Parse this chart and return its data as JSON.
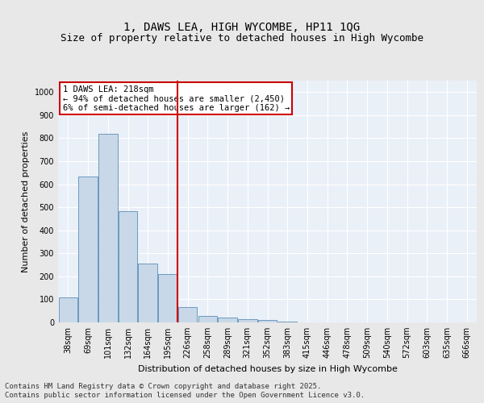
{
  "title_line1": "1, DAWS LEA, HIGH WYCOMBE, HP11 1QG",
  "title_line2": "Size of property relative to detached houses in High Wycombe",
  "xlabel": "Distribution of detached houses by size in High Wycombe",
  "ylabel": "Number of detached properties",
  "categories": [
    "38sqm",
    "69sqm",
    "101sqm",
    "132sqm",
    "164sqm",
    "195sqm",
    "226sqm",
    "258sqm",
    "289sqm",
    "321sqm",
    "352sqm",
    "383sqm",
    "415sqm",
    "446sqm",
    "478sqm",
    "509sqm",
    "540sqm",
    "572sqm",
    "603sqm",
    "635sqm",
    "666sqm"
  ],
  "values": [
    110,
    635,
    820,
    483,
    255,
    210,
    65,
    27,
    20,
    13,
    9,
    5,
    0,
    0,
    0,
    0,
    0,
    0,
    0,
    0,
    0
  ],
  "bar_color": "#c8d8e8",
  "bar_edge_color": "#5b8db8",
  "vline_x": 5.5,
  "vline_color": "#cc0000",
  "annotation_line1": "1 DAWS LEA: 218sqm",
  "annotation_line2": "← 94% of detached houses are smaller (2,450)",
  "annotation_line3": "6% of semi-detached houses are larger (162) →",
  "annotation_box_color": "#cc0000",
  "ylim": [
    0,
    1050
  ],
  "yticks": [
    0,
    100,
    200,
    300,
    400,
    500,
    600,
    700,
    800,
    900,
    1000
  ],
  "background_color": "#eaf0f8",
  "grid_color": "#ffffff",
  "fig_bg_color": "#e8e8e8",
  "footer_line1": "Contains HM Land Registry data © Crown copyright and database right 2025.",
  "footer_line2": "Contains public sector information licensed under the Open Government Licence v3.0.",
  "title_fontsize": 10,
  "subtitle_fontsize": 9,
  "axis_label_fontsize": 8,
  "tick_fontsize": 7,
  "annotation_fontsize": 7.5,
  "footer_fontsize": 6.5
}
